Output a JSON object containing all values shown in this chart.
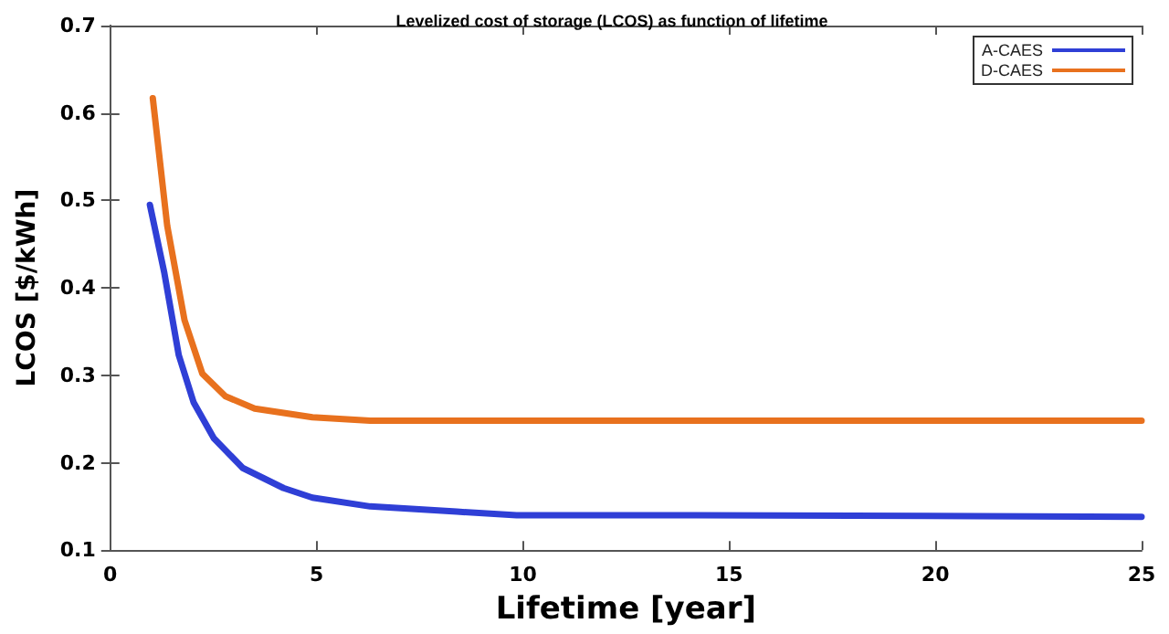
{
  "chart_data": {
    "type": "line",
    "title": "Levelized cost of storage (LCOS) as function of lifetime",
    "xlabel": "Lifetime [year]",
    "ylabel": "LCOS [$/kWh]",
    "xlim": [
      0,
      25
    ],
    "xticks": [
      0,
      5,
      10,
      15,
      20,
      25
    ],
    "ylim": [
      0.1,
      0.7
    ],
    "yticks": [
      0.1,
      0.2,
      0.3,
      0.4,
      0.5,
      0.6,
      0.7
    ],
    "grid": false,
    "legend": "top right",
    "marker": "none",
    "line_style": "solid",
    "series": [
      {
        "name": "A-CAES",
        "color": "#2f3fd6",
        "x": [
          0.96,
          1.31,
          1.66,
          2.02,
          2.51,
          3.21,
          4.2,
          4.9,
          6.3,
          8.4,
          9.85,
          13.5,
          21,
          25
        ],
        "values": [
          0.495,
          0.417,
          0.323,
          0.269,
          0.228,
          0.194,
          0.171,
          0.16,
          0.15,
          0.144,
          0.14,
          0.14,
          0.139,
          0.138
        ]
      },
      {
        "name": "D-CAES",
        "color": "#e8711e",
        "x": [
          1.03,
          1.38,
          1.8,
          2.23,
          2.79,
          3.5,
          4.9,
          6.3,
          25
        ],
        "values": [
          0.617,
          0.471,
          0.363,
          0.302,
          0.276,
          0.262,
          0.252,
          0.248,
          0.248
        ]
      }
    ]
  }
}
